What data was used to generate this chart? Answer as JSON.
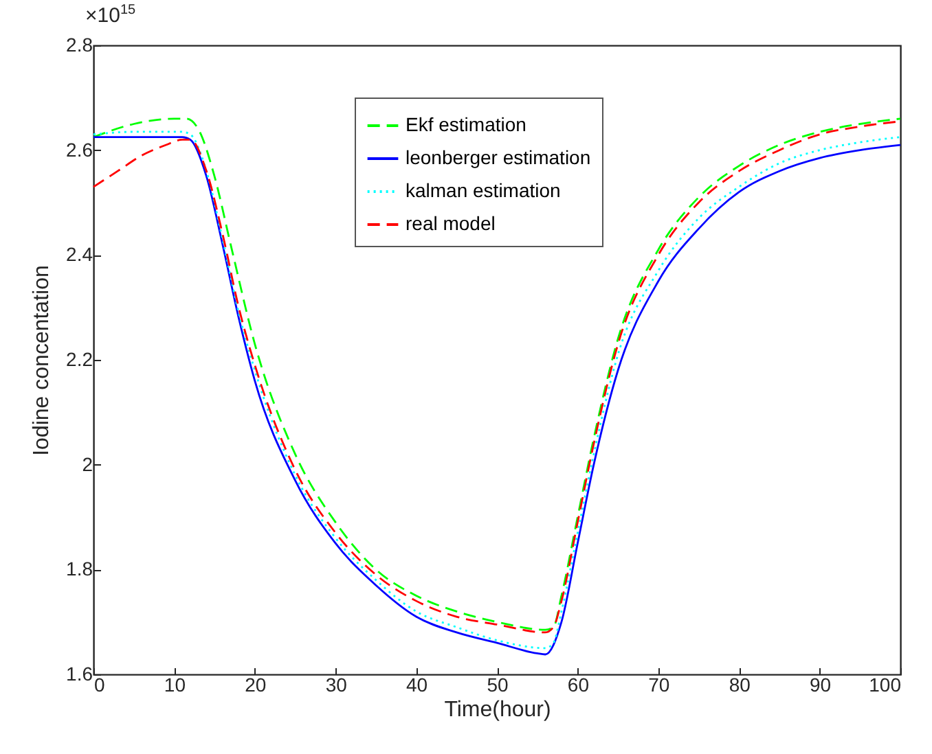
{
  "chart_data": {
    "type": "line",
    "xlabel": "Time(hour)",
    "ylabel": "Iodine concentation",
    "annotations": [
      "×10$^{15}$"
    ],
    "xlim": [
      0,
      100
    ],
    "ylim": [
      1.6,
      2.8
    ],
    "xticks": [
      0,
      10,
      20,
      30,
      40,
      50,
      60,
      70,
      80,
      90,
      100
    ],
    "yticks": [
      1.6,
      1.8,
      2,
      2.2,
      2.4,
      2.6,
      2.8
    ],
    "grid": false,
    "legend": "top right",
    "marker": "none",
    "series": [
      {
        "name": "Ekf estimation",
        "color": "#00ff00",
        "line_style": "dashed",
        "x": [
          0,
          5,
          10,
          11.5,
          13,
          15,
          17,
          20,
          25,
          30,
          35,
          40,
          45,
          50,
          56,
          57,
          58,
          60,
          62,
          65,
          70,
          75,
          80,
          85,
          90,
          95,
          100
        ],
        "values": [
          2.625,
          2.65,
          2.66,
          2.66,
          2.64,
          2.55,
          2.42,
          2.23,
          2.02,
          1.89,
          1.8,
          1.75,
          1.72,
          1.7,
          1.685,
          1.69,
          1.75,
          1.9,
          2.05,
          2.24,
          2.41,
          2.51,
          2.57,
          2.61,
          2.635,
          2.65,
          2.66
        ]
      },
      {
        "name": "leonberger estimation",
        "color": "#0000ff",
        "line_style": "solid",
        "x": [
          0,
          11,
          12,
          14,
          16,
          18,
          20,
          25,
          30,
          35,
          40,
          45,
          50,
          55,
          56,
          58,
          60,
          62,
          65,
          70,
          75,
          80,
          85,
          90,
          95,
          100
        ],
        "values": [
          2.625,
          2.625,
          2.62,
          2.55,
          2.42,
          2.28,
          2.16,
          1.97,
          1.85,
          1.77,
          1.71,
          1.68,
          1.66,
          1.64,
          1.638,
          1.7,
          1.85,
          2.0,
          2.18,
          2.35,
          2.45,
          2.52,
          2.56,
          2.585,
          2.6,
          2.61
        ]
      },
      {
        "name": "kalman estimation",
        "color": "#00ffff",
        "line_style": "dotted",
        "x": [
          0,
          5,
          11,
          12,
          14,
          16,
          18,
          20,
          25,
          30,
          35,
          40,
          45,
          50,
          56,
          57,
          58,
          60,
          62,
          65,
          70,
          75,
          80,
          85,
          90,
          95,
          100
        ],
        "values": [
          2.63,
          2.635,
          2.635,
          2.63,
          2.56,
          2.43,
          2.29,
          2.18,
          1.98,
          1.86,
          1.78,
          1.72,
          1.69,
          1.665,
          1.65,
          1.66,
          1.72,
          1.87,
          2.02,
          2.21,
          2.37,
          2.47,
          2.53,
          2.575,
          2.6,
          2.615,
          2.625
        ]
      },
      {
        "name": "real model",
        "color": "#ff0000",
        "line_style": "dashed",
        "x": [
          0,
          3,
          6,
          9,
          11,
          12,
          14,
          16,
          18,
          20,
          25,
          30,
          35,
          40,
          45,
          50,
          56,
          57,
          58,
          60,
          62,
          65,
          70,
          75,
          80,
          85,
          90,
          95,
          100
        ],
        "values": [
          2.53,
          2.56,
          2.59,
          2.61,
          2.62,
          2.62,
          2.56,
          2.44,
          2.3,
          2.19,
          1.99,
          1.87,
          1.79,
          1.74,
          1.71,
          1.695,
          1.68,
          1.69,
          1.74,
          1.89,
          2.04,
          2.23,
          2.4,
          2.5,
          2.56,
          2.6,
          2.63,
          2.645,
          2.655
        ]
      }
    ]
  }
}
